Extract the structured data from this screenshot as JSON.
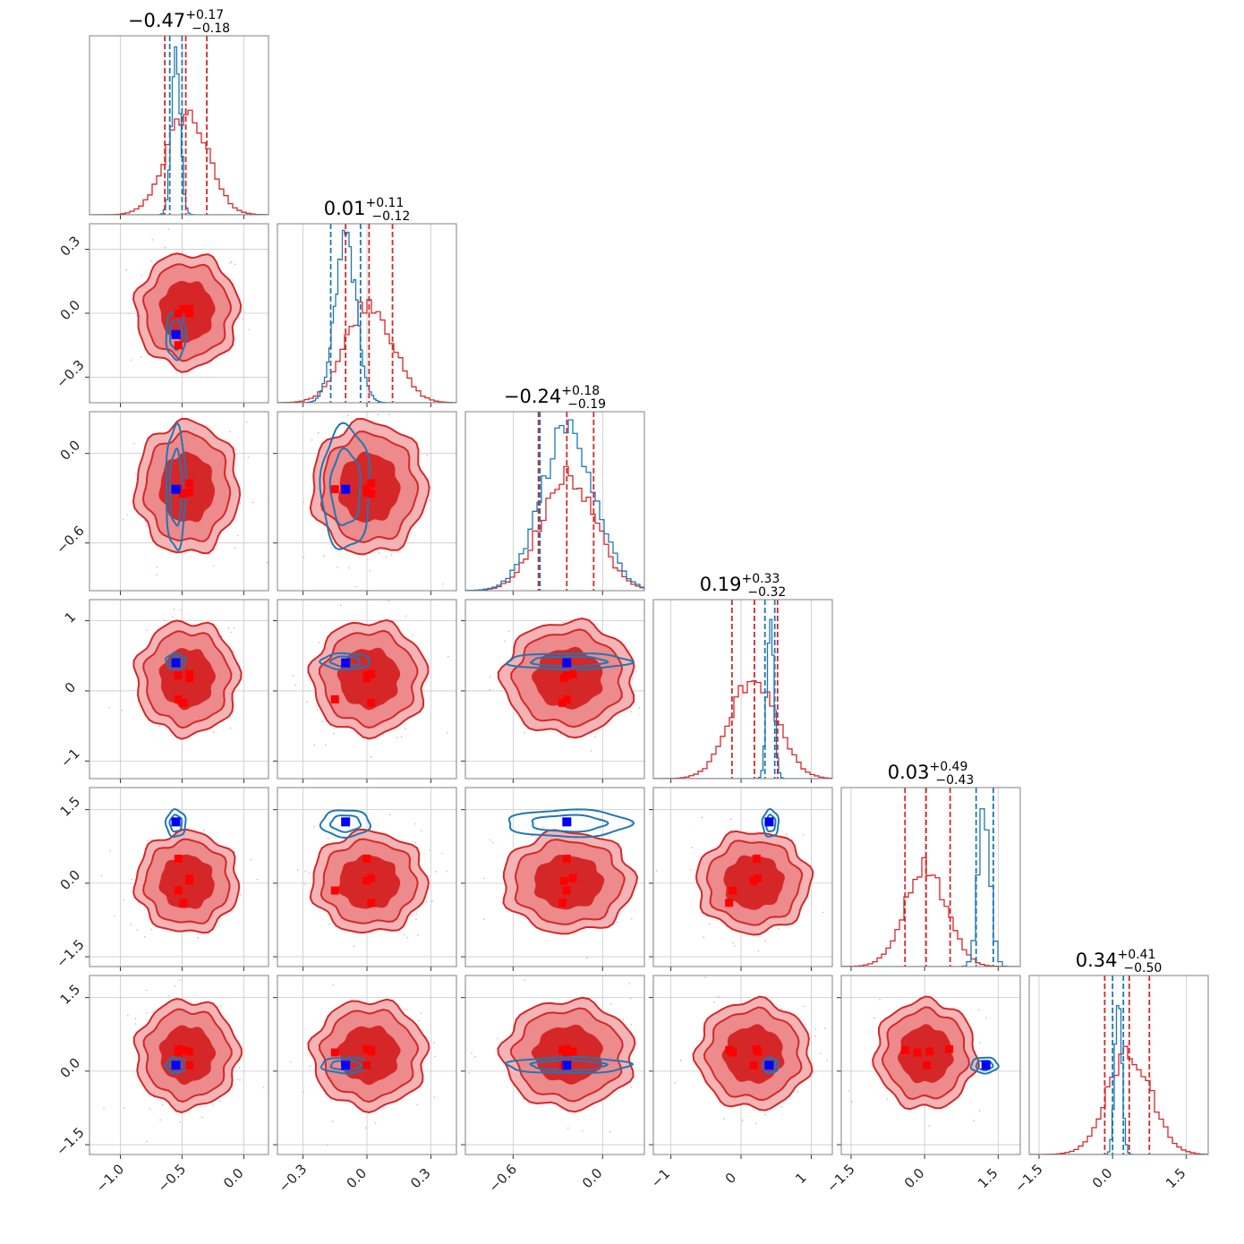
{
  "chart_data": {
    "type": "corner",
    "parameters": [
      {
        "title_value": "−0.47",
        "title_plus": "+0.17",
        "title_minus": "−0.18",
        "range": [
          -1.25,
          0.2
        ],
        "ticks": [
          -1.0,
          -0.5,
          0.0
        ],
        "tick_labels": [
          "−1.0",
          "−0.5",
          "0.0"
        ],
        "red_center": -0.46,
        "red_sigma": 0.17,
        "blue_center": -0.55,
        "blue_sigma": 0.035,
        "red_quantiles": [
          -0.64,
          -0.47,
          -0.3
        ],
        "blue_quantiles": [
          -0.6,
          -0.5
        ]
      },
      {
        "title_value": "0.01",
        "title_plus": "+0.11",
        "title_minus": "−0.12",
        "range": [
          -0.42,
          0.42
        ],
        "ticks": [
          -0.3,
          0.0,
          0.3
        ],
        "tick_labels": [
          "−0.3",
          "0.0",
          "0.3"
        ],
        "red_center": 0.01,
        "red_sigma": 0.11,
        "blue_center": -0.1,
        "blue_sigma": 0.05,
        "red_quantiles": [
          -0.1,
          0.01,
          0.12
        ],
        "blue_quantiles": [
          -0.17,
          -0.03
        ]
      },
      {
        "title_value": "−0.24",
        "title_plus": "+0.18",
        "title_minus": "−0.19",
        "range": [
          -0.92,
          0.28
        ],
        "ticks": [
          -0.6,
          0.0
        ],
        "tick_labels": [
          "−0.6",
          "0.0"
        ],
        "red_center": -0.23,
        "red_sigma": 0.18,
        "blue_center": -0.23,
        "blue_sigma": 0.18,
        "red_quantiles": [
          -0.43,
          -0.24,
          -0.06
        ],
        "blue_quantiles": [
          -0.42
        ]
      },
      {
        "title_value": "0.19",
        "title_plus": "+0.33",
        "title_minus": "−0.32",
        "range": [
          -1.25,
          1.3
        ],
        "ticks": [
          -1,
          0,
          1
        ],
        "tick_labels": [
          "−1",
          "0",
          "1"
        ],
        "red_center": 0.18,
        "red_sigma": 0.33,
        "blue_center": 0.42,
        "blue_sigma": 0.05,
        "red_quantiles": [
          -0.13,
          0.19,
          0.52
        ],
        "blue_quantiles": [
          0.34,
          0.48
        ]
      },
      {
        "title_value": "0.03",
        "title_plus": "+0.49",
        "title_minus": "−0.43",
        "range": [
          -1.7,
          1.95
        ],
        "ticks": [
          -1.5,
          0.0,
          1.5
        ],
        "tick_labels": [
          "−1.5",
          "0.0",
          "1.5"
        ],
        "red_center": 0.02,
        "red_sigma": 0.42,
        "blue_center": 1.22,
        "blue_sigma": 0.12,
        "red_quantiles": [
          -0.4,
          0.03,
          0.52
        ],
        "blue_quantiles": [
          1.05,
          1.4
        ]
      },
      {
        "title_value": "0.34",
        "title_plus": "+0.41",
        "title_minus": "−0.50",
        "range": [
          -1.7,
          1.95
        ],
        "ticks": [
          -1.5,
          0.0,
          1.5
        ],
        "tick_labels": [
          "−1.5",
          "0.0",
          "1.5"
        ],
        "red_center": 0.34,
        "red_sigma": 0.45,
        "blue_center": 0.12,
        "blue_sigma": 0.07,
        "red_quantiles": [
          -0.16,
          0.34,
          0.75
        ],
        "blue_quantiles": [
          0.0,
          0.22
        ]
      }
    ],
    "truth_blue": [
      -0.55,
      -0.1,
      -0.24,
      0.4,
      1.25,
      0.12
    ],
    "truth_red_points": [
      [
        -0.53,
        0.0,
        -0.24,
        0.22,
        0.5,
        0.45
      ],
      [
        -0.44,
        0.02,
        -0.2,
        0.24,
        0.1,
        0.4
      ],
      [
        -0.53,
        -0.15,
        -0.24,
        -0.12,
        -0.15,
        0.38
      ],
      [
        -0.49,
        0.02,
        -0.27,
        -0.17,
        -0.4,
        0.43
      ],
      [
        -0.44,
        0.0,
        -0.26,
        0.18,
        0.05,
        0.12
      ]
    ],
    "colors": {
      "red": "#d62728",
      "blue": "#1f77b4",
      "truth_blue": "#0000ff",
      "truth_red": "#ff0000",
      "grid": "#c8c8c8",
      "frame": "#808080"
    },
    "grid": true
  }
}
